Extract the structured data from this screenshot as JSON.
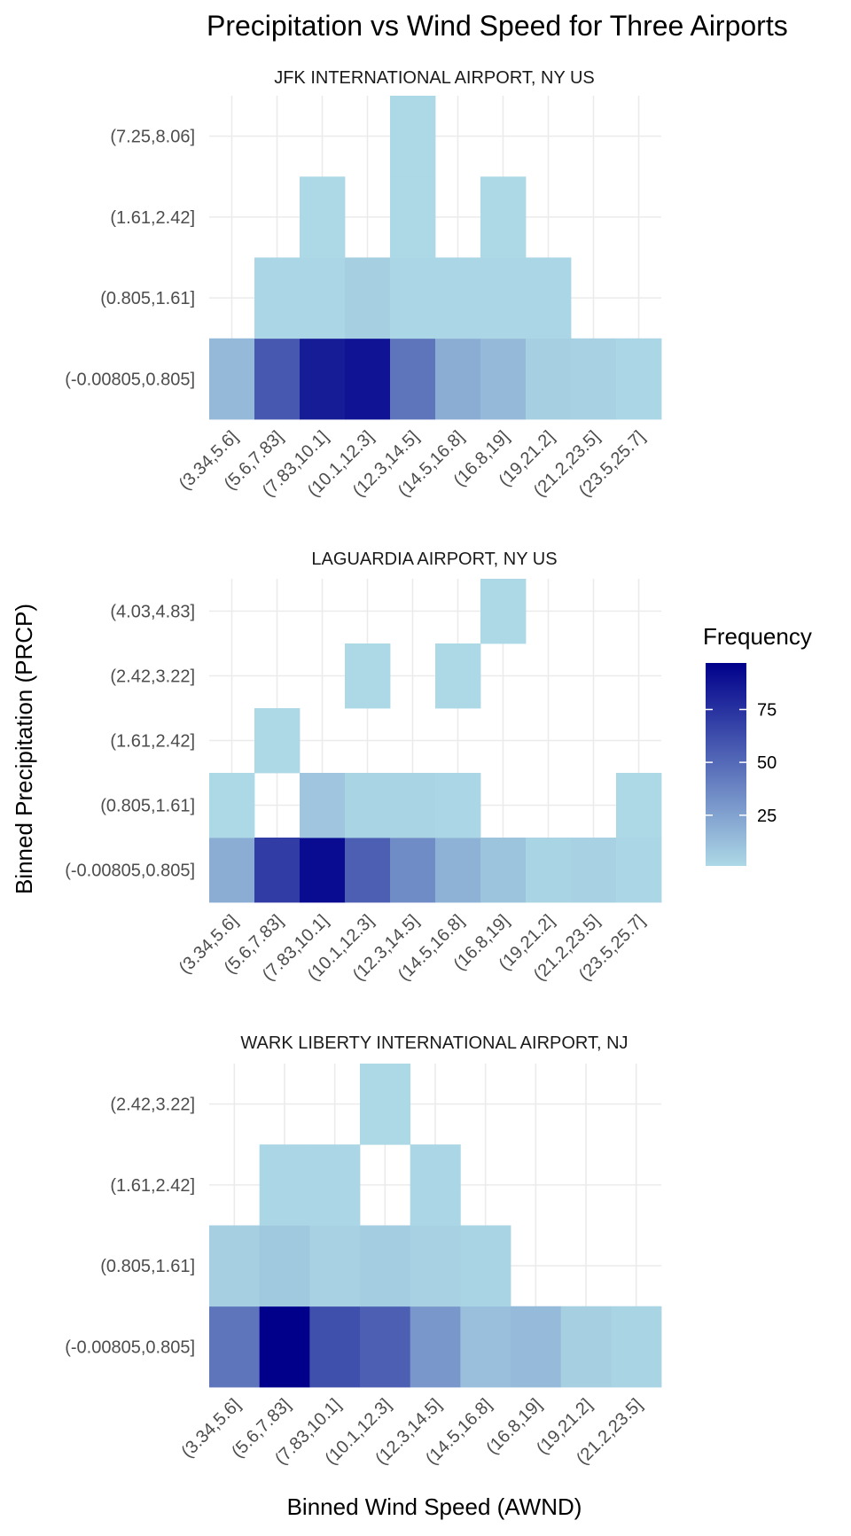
{
  "chart_data": {
    "type": "heatmap",
    "title": "Precipitation vs Wind Speed for Three Airports",
    "xlabel": "Binned Wind Speed (AWND)",
    "ylabel": "Binned Precipitation (PRCP)",
    "legend": {
      "title": "Frequency",
      "ticks": [
        25,
        50,
        75
      ],
      "range": [
        1,
        97
      ],
      "low_color": "#ADD8E6",
      "high_color": "#00008B",
      "placement": "right"
    },
    "panels": [
      {
        "title": "JFK INTERNATIONAL AIRPORT, NY US",
        "x_categories": [
          "(3.34,5.6]",
          "(5.6,7.83]",
          "(7.83,10.1]",
          "(10.1,12.3]",
          "(12.3,14.5]",
          "(14.5,16.8]",
          "(16.8,19]",
          "(19,21.2]",
          "(21.2,23.5]",
          "(23.5,25.7]"
        ],
        "y_categories": [
          "(-0.00805,0.805]",
          "(0.805,1.61]",
          "(1.61,2.42]",
          "(7.25,8.06]"
        ],
        "cells": [
          {
            "x": "(3.34,5.6]",
            "y": "(-0.00805,0.805]",
            "value": 15
          },
          {
            "x": "(5.6,7.83]",
            "y": "(-0.00805,0.805]",
            "value": 58
          },
          {
            "x": "(7.83,10.1]",
            "y": "(-0.00805,0.805]",
            "value": 85
          },
          {
            "x": "(10.1,12.3]",
            "y": "(-0.00805,0.805]",
            "value": 88
          },
          {
            "x": "(12.3,14.5]",
            "y": "(-0.00805,0.805]",
            "value": 45
          },
          {
            "x": "(14.5,16.8]",
            "y": "(-0.00805,0.805]",
            "value": 20
          },
          {
            "x": "(16.8,19]",
            "y": "(-0.00805,0.805]",
            "value": 15
          },
          {
            "x": "(19,21.2]",
            "y": "(-0.00805,0.805]",
            "value": 5
          },
          {
            "x": "(21.2,23.5]",
            "y": "(-0.00805,0.805]",
            "value": 4
          },
          {
            "x": "(23.5,25.7]",
            "y": "(-0.00805,0.805]",
            "value": 2
          },
          {
            "x": "(5.6,7.83]",
            "y": "(0.805,1.61]",
            "value": 2
          },
          {
            "x": "(7.83,10.1]",
            "y": "(0.805,1.61]",
            "value": 2
          },
          {
            "x": "(10.1,12.3]",
            "y": "(0.805,1.61]",
            "value": 5
          },
          {
            "x": "(12.3,14.5]",
            "y": "(0.805,1.61]",
            "value": 2
          },
          {
            "x": "(14.5,16.8]",
            "y": "(0.805,1.61]",
            "value": 2
          },
          {
            "x": "(16.8,19]",
            "y": "(0.805,1.61]",
            "value": 2
          },
          {
            "x": "(19,21.2]",
            "y": "(0.805,1.61]",
            "value": 2
          },
          {
            "x": "(7.83,10.1]",
            "y": "(1.61,2.42]",
            "value": 1
          },
          {
            "x": "(16.8,19]",
            "y": "(1.61,2.42]",
            "value": 1
          },
          {
            "x": "(12.3,14.5]",
            "y": "(1.61,2.42]",
            "value": 1
          },
          {
            "x": "(12.3,14.5]",
            "y": "(7.25,8.06]",
            "value": 1
          }
        ]
      },
      {
        "title": "LAGUARDIA AIRPORT, NY US",
        "x_categories": [
          "(3.34,5.6]",
          "(5.6,7.83]",
          "(7.83,10.1]",
          "(10.1,12.3]",
          "(12.3,14.5]",
          "(14.5,16.8]",
          "(16.8,19]",
          "(19,21.2]",
          "(21.2,23.5]",
          "(23.5,25.7]"
        ],
        "y_categories": [
          "(-0.00805,0.805]",
          "(0.805,1.61]",
          "(1.61,2.42]",
          "(2.42,3.22]",
          "(4.03,4.83]"
        ],
        "cells": [
          {
            "x": "(3.34,5.6]",
            "y": "(-0.00805,0.805]",
            "value": 20
          },
          {
            "x": "(5.6,7.83]",
            "y": "(-0.00805,0.805]",
            "value": 70
          },
          {
            "x": "(7.83,10.1]",
            "y": "(-0.00805,0.805]",
            "value": 92
          },
          {
            "x": "(10.1,12.3]",
            "y": "(-0.00805,0.805]",
            "value": 55
          },
          {
            "x": "(12.3,14.5]",
            "y": "(-0.00805,0.805]",
            "value": 35
          },
          {
            "x": "(14.5,16.8]",
            "y": "(-0.00805,0.805]",
            "value": 18
          },
          {
            "x": "(16.8,19]",
            "y": "(-0.00805,0.805]",
            "value": 10
          },
          {
            "x": "(19,21.2]",
            "y": "(-0.00805,0.805]",
            "value": 3
          },
          {
            "x": "(21.2,23.5]",
            "y": "(-0.00805,0.805]",
            "value": 4
          },
          {
            "x": "(23.5,25.7]",
            "y": "(-0.00805,0.805]",
            "value": 2
          },
          {
            "x": "(3.34,5.6]",
            "y": "(0.805,1.61]",
            "value": 1
          },
          {
            "x": "(7.83,10.1]",
            "y": "(0.805,1.61]",
            "value": 9
          },
          {
            "x": "(10.1,12.3]",
            "y": "(0.805,1.61]",
            "value": 3
          },
          {
            "x": "(12.3,14.5]",
            "y": "(0.805,1.61]",
            "value": 3
          },
          {
            "x": "(14.5,16.8]",
            "y": "(0.805,1.61]",
            "value": 2
          },
          {
            "x": "(23.5,25.7]",
            "y": "(0.805,1.61]",
            "value": 1
          },
          {
            "x": "(5.6,7.83]",
            "y": "(1.61,2.42]",
            "value": 1
          },
          {
            "x": "(10.1,12.3]",
            "y": "(2.42,3.22]",
            "value": 1
          },
          {
            "x": "(14.5,16.8]",
            "y": "(2.42,3.22]",
            "value": 1
          },
          {
            "x": "(16.8,19]",
            "y": "(4.03,4.83]",
            "value": 1
          }
        ]
      },
      {
        "title": "WARK LIBERTY INTERNATIONAL AIRPORT, NJ",
        "x_categories": [
          "(3.34,5.6]",
          "(5.6,7.83]",
          "(7.83,10.1]",
          "(10.1,12.3]",
          "(12.3,14.5]",
          "(14.5,16.8]",
          "(16.8,19]",
          "(19,21.2]",
          "(21.2,23.5]"
        ],
        "y_categories": [
          "(-0.00805,0.805]",
          "(0.805,1.61]",
          "(1.61,2.42]",
          "(2.42,3.22]"
        ],
        "cells": [
          {
            "x": "(3.34,5.6]",
            "y": "(-0.00805,0.805]",
            "value": 45
          },
          {
            "x": "(5.6,7.83]",
            "y": "(-0.00805,0.805]",
            "value": 97
          },
          {
            "x": "(7.83,10.1]",
            "y": "(-0.00805,0.805]",
            "value": 62
          },
          {
            "x": "(10.1,12.3]",
            "y": "(-0.00805,0.805]",
            "value": 55
          },
          {
            "x": "(12.3,14.5]",
            "y": "(-0.00805,0.805]",
            "value": 30
          },
          {
            "x": "(14.5,16.8]",
            "y": "(-0.00805,0.805]",
            "value": 12
          },
          {
            "x": "(16.8,19]",
            "y": "(-0.00805,0.805]",
            "value": 14
          },
          {
            "x": "(19,21.2]",
            "y": "(-0.00805,0.805]",
            "value": 5
          },
          {
            "x": "(21.2,23.5]",
            "y": "(-0.00805,0.805]",
            "value": 3
          },
          {
            "x": "(3.34,5.6]",
            "y": "(0.805,1.61]",
            "value": 5
          },
          {
            "x": "(5.6,7.83]",
            "y": "(0.805,1.61]",
            "value": 8
          },
          {
            "x": "(7.83,10.1]",
            "y": "(0.805,1.61]",
            "value": 4
          },
          {
            "x": "(10.1,12.3]",
            "y": "(0.805,1.61]",
            "value": 6
          },
          {
            "x": "(12.3,14.5]",
            "y": "(0.805,1.61]",
            "value": 4
          },
          {
            "x": "(14.5,16.8]",
            "y": "(0.805,1.61]",
            "value": 3
          },
          {
            "x": "(5.6,7.83]",
            "y": "(1.61,2.42]",
            "value": 2
          },
          {
            "x": "(7.83,10.1]",
            "y": "(1.61,2.42]",
            "value": 2
          },
          {
            "x": "(12.3,14.5]",
            "y": "(1.61,2.42]",
            "value": 2
          },
          {
            "x": "(10.1,12.3]",
            "y": "(2.42,3.22]",
            "value": 1
          }
        ]
      }
    ]
  }
}
